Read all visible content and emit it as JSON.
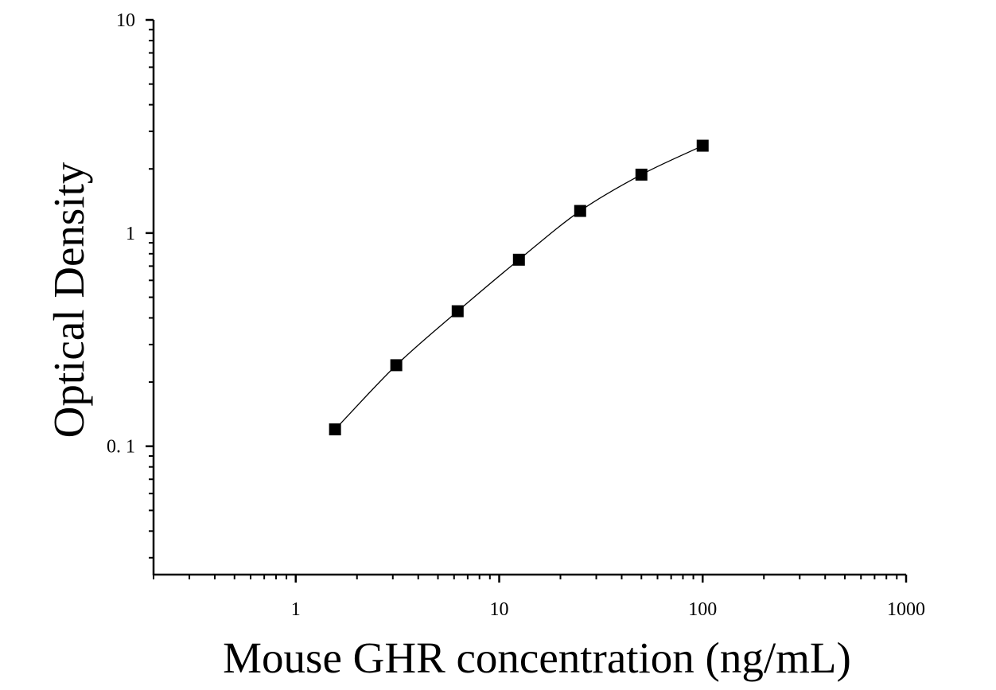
{
  "chart_data": {
    "type": "scatter",
    "title": "",
    "xlabel": "Mouse GHR concentration (ng/mL)",
    "ylabel": "Optical Density",
    "x_scale": "log",
    "y_scale": "log",
    "xlim": [
      0.2,
      1000
    ],
    "ylim": [
      0.025,
      10
    ],
    "x_ticks": [
      {
        "value": 1,
        "label": "1"
      },
      {
        "value": 10,
        "label": "10"
      },
      {
        "value": 100,
        "label": "100"
      },
      {
        "value": 1000,
        "label": "1000"
      }
    ],
    "y_ticks": [
      {
        "value": 0.1,
        "label": "0. 1"
      },
      {
        "value": 1,
        "label": "1"
      },
      {
        "value": 10,
        "label": "10"
      }
    ],
    "grid": false,
    "legend": "none",
    "series": [
      {
        "marker": "square",
        "color": "#000000",
        "fit_line": true,
        "points": [
          {
            "x": 1.56,
            "y": 0.12
          },
          {
            "x": 3.12,
            "y": 0.24
          },
          {
            "x": 6.25,
            "y": 0.43
          },
          {
            "x": 12.5,
            "y": 0.75
          },
          {
            "x": 25,
            "y": 1.27
          },
          {
            "x": 50,
            "y": 1.88
          },
          {
            "x": 100,
            "y": 2.57
          }
        ]
      }
    ]
  }
}
